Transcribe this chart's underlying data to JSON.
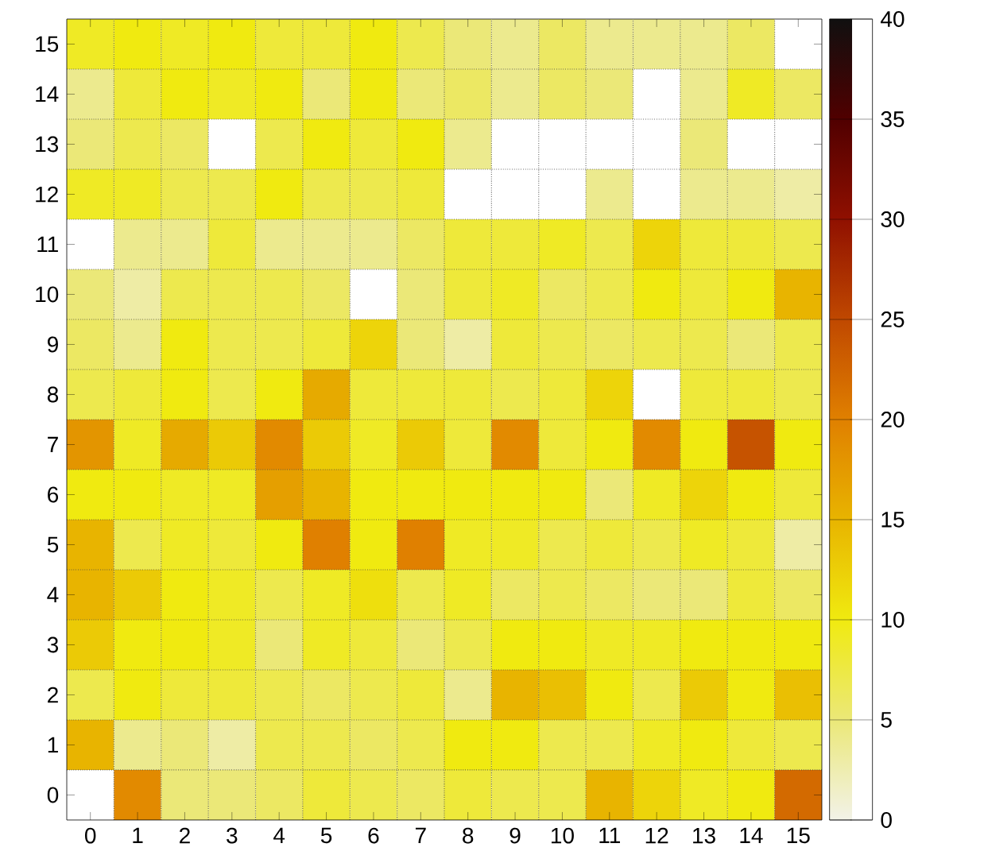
{
  "chart_data": {
    "type": "heatmap",
    "categories": [
      "0",
      "1",
      "2",
      "3",
      "4",
      "5",
      "6",
      "7",
      "8",
      "9",
      "10",
      "11",
      "12",
      "13",
      "14",
      "15"
    ],
    "y_categories": [
      "15",
      "14",
      "13",
      "12",
      "11",
      "10",
      "9",
      "8",
      "7",
      "6",
      "5",
      "4",
      "3",
      "2",
      "1",
      "0"
    ],
    "cells": [
      [
        9,
        10,
        9,
        10,
        8,
        8,
        10,
        7,
        5,
        4,
        6,
        4,
        4,
        4,
        6,
        null
      ],
      [
        4,
        8,
        10,
        9,
        10,
        5,
        10,
        5,
        6,
        4,
        6,
        5,
        null,
        4,
        9,
        6
      ],
      [
        5,
        7,
        6,
        null,
        7,
        10,
        8,
        10,
        4,
        null,
        null,
        null,
        null,
        5,
        null,
        null
      ],
      [
        9,
        9,
        7,
        7,
        10,
        7,
        7,
        8,
        null,
        null,
        null,
        4,
        null,
        4,
        4,
        3
      ],
      [
        null,
        4,
        4,
        8,
        4,
        4,
        4,
        6,
        8,
        8,
        9,
        7,
        12,
        8,
        8,
        7
      ],
      [
        5,
        3,
        7,
        7,
        7,
        6,
        null,
        5,
        8,
        9,
        6,
        7,
        10,
        8,
        10,
        15
      ],
      [
        6,
        4,
        10,
        7,
        7,
        8,
        12,
        5,
        3,
        8,
        7,
        6,
        7,
        7,
        5,
        7
      ],
      [
        7,
        8,
        10,
        7,
        10,
        16,
        8,
        8,
        8,
        7,
        8,
        12,
        null,
        8,
        8,
        7
      ],
      [
        18,
        9,
        16,
        13,
        19,
        13,
        9,
        13,
        8,
        19,
        8,
        10,
        19,
        10,
        24,
        10
      ],
      [
        10,
        10,
        9,
        9,
        17,
        15,
        10,
        10,
        10,
        10,
        10,
        5,
        9,
        12,
        10,
        8
      ],
      [
        15,
        7,
        9,
        8,
        10,
        20,
        10,
        20,
        9,
        9,
        7,
        8,
        7,
        9,
        8,
        3
      ],
      [
        15,
        13,
        10,
        9,
        7,
        9,
        11,
        7,
        9,
        6,
        7,
        6,
        5,
        5,
        8,
        6
      ],
      [
        13,
        10,
        10,
        9,
        5,
        9,
        8,
        5,
        7,
        10,
        10,
        9,
        9,
        10,
        10,
        10
      ],
      [
        7,
        10,
        8,
        8,
        7,
        6,
        7,
        8,
        4,
        15,
        14,
        10,
        7,
        13,
        10,
        14
      ],
      [
        15,
        4,
        5,
        3,
        7,
        7,
        6,
        7,
        10,
        10,
        7,
        7,
        9,
        10,
        8,
        7
      ],
      [
        null,
        19,
        5,
        5,
        6,
        8,
        7,
        6,
        8,
        7,
        7,
        15,
        12,
        9,
        10,
        22
      ]
    ],
    "clim": [
      0,
      40
    ],
    "cticks": [
      0,
      5,
      10,
      15,
      20,
      25,
      30,
      35,
      40
    ],
    "grid": true
  }
}
